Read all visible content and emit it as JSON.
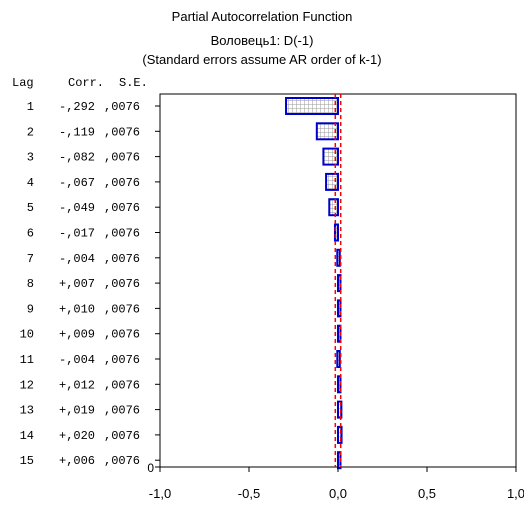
{
  "chart_data": {
    "type": "bar",
    "orientation": "horizontal",
    "title": "Partial Autocorrelation Function",
    "subtitle": "Воловець1: D(-1)",
    "note": "(Standard errors assume AR order of k-1)",
    "table_headers": {
      "lag": "Lag",
      "corr": "Corr.",
      "se": "S.E."
    },
    "lags": [
      1,
      2,
      3,
      4,
      5,
      6,
      7,
      8,
      9,
      10,
      11,
      12,
      13,
      14,
      15
    ],
    "corr_labels": [
      "-,292",
      "-,119",
      "-,082",
      "-,067",
      "-,049",
      "-,017",
      "-,004",
      "+,007",
      "+,010",
      "+,009",
      "-,004",
      "+,012",
      "+,019",
      "+,020",
      "+,006"
    ],
    "values": [
      -0.292,
      -0.119,
      -0.082,
      -0.067,
      -0.049,
      -0.017,
      -0.004,
      0.007,
      0.01,
      0.009,
      -0.004,
      0.012,
      0.019,
      0.02,
      0.006
    ],
    "se_labels": [
      ",0076",
      ",0076",
      ",0076",
      ",0076",
      ",0076",
      ",0076",
      ",0076",
      ",0076",
      ",0076",
      ",0076",
      ",0076",
      ",0076",
      ",0076",
      ",0076",
      ",0076"
    ],
    "std_error": 0.0076,
    "confidence_multiplier": 2,
    "xlim": [
      -1,
      1
    ],
    "x_ticks": [
      "-1,0",
      "-0,5",
      "0,0",
      "0,5",
      "1,0"
    ],
    "y_bottom_label": "0",
    "colors": {
      "bar_border": "#0000cc",
      "bar_fill_grid": "#aaaaaa",
      "conf_line": "#ff0000"
    }
  }
}
